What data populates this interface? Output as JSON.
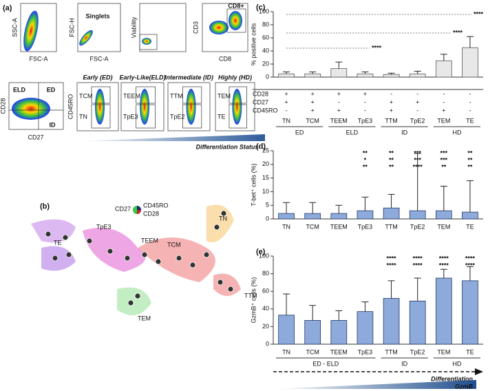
{
  "panel_a": {
    "label": "(a)",
    "plots": [
      {
        "x": "FSC-A",
        "y": "SSC-A"
      },
      {
        "x": "FSC-A",
        "y": "FSC-H",
        "gate": "Singlets"
      },
      {
        "y": "Viability"
      },
      {
        "x": "CD8",
        "y": "CD3",
        "gate": "CD8+"
      },
      {
        "x": "CD27",
        "y": "CD28",
        "gates": [
          "ELD",
          "ED",
          "ID"
        ]
      }
    ],
    "subset_y": "CD45RO",
    "subsets": [
      {
        "title": "Early (ED)",
        "upper": "TCM",
        "lower": "TN"
      },
      {
        "title": "Early-Like(ELD)",
        "upper": "TEEM",
        "lower": "TpE3"
      },
      {
        "title": "Intermediate (ID)",
        "upper": "TTM",
        "lower": "TpE2"
      },
      {
        "title": "Highly (HD)",
        "upper": "TEM",
        "lower": "TE"
      }
    ],
    "arrow": "Differentiation Status"
  },
  "panel_b": {
    "label": "(b)",
    "legend": [
      "CD27",
      "CD45RO",
      "CD28"
    ],
    "clusters": [
      "TE",
      "TpE3",
      "TEEM",
      "TCM",
      "TN",
      "TTM",
      "TEM"
    ]
  },
  "chart_data": [
    {
      "type": "bar",
      "label": "(c)",
      "ylabel": "% positive cells",
      "categories": [
        "TN",
        "TCM",
        "TEEM",
        "TpE3",
        "TTM",
        "TpE2",
        "TEM",
        "TE"
      ],
      "values": [
        5,
        5,
        13,
        5,
        4,
        5,
        25,
        45
      ],
      "errors": [
        3,
        3,
        10,
        3,
        2,
        4,
        10,
        17
      ],
      "ylim": [
        0,
        100
      ],
      "yticks": [
        0,
        20,
        40,
        60,
        80,
        100
      ],
      "color": "#e8e8e8",
      "edge": "#555555",
      "annotations": [
        "****",
        "****",
        "****"
      ],
      "markers": [
        {
          "name": "CD28",
          "signs": [
            "+",
            "+",
            "+",
            "+",
            "-",
            "-",
            "-",
            "-"
          ]
        },
        {
          "name": "CD27",
          "signs": [
            "+",
            "+",
            "-",
            "-",
            "+",
            "+",
            "-",
            "-"
          ]
        },
        {
          "name": "CD45RO",
          "signs": [
            "-",
            "+",
            "+",
            "-",
            "+",
            "-",
            "+",
            "-"
          ]
        }
      ],
      "groups": [
        "ED",
        "ELD",
        "ID",
        "HD"
      ]
    },
    {
      "type": "bar",
      "label": "(d)",
      "ylabel": "T-bet⁺ cells (%)",
      "categories": [
        "TN",
        "TCM",
        "TEEM",
        "TpE3",
        "TTM",
        "TpE2",
        "TEM",
        "TE"
      ],
      "values": [
        2,
        2,
        2,
        3,
        4,
        3,
        3,
        2.5
      ],
      "errors": [
        4,
        4,
        3,
        5,
        5,
        21,
        9,
        11.5
      ],
      "ylim": [
        0,
        25
      ],
      "yticks": [
        0,
        5,
        10,
        15,
        20,
        25
      ],
      "color": "#8eaadb",
      "edge": "#1f3864",
      "annotations": [
        [],
        [],
        [],
        [
          "**",
          "*",
          "**"
        ],
        [
          "**",
          "**",
          "**"
        ],
        [
          "***",
          "***",
          "****"
        ],
        [
          "***",
          "***",
          "**"
        ],
        [
          "**",
          "**",
          "**"
        ]
      ]
    },
    {
      "type": "bar",
      "label": "(e)",
      "ylabel": "GzmB⁺ cells (%)",
      "categories": [
        "TN",
        "TCM",
        "TEEM",
        "TpE3",
        "TTM",
        "TpE2",
        "TEM",
        "TE"
      ],
      "values": [
        33,
        27,
        27,
        37,
        52,
        49,
        75,
        72
      ],
      "errors": [
        24,
        17,
        11,
        11,
        20,
        26,
        10,
        16
      ],
      "ylim": [
        0,
        100
      ],
      "yticks": [
        0,
        20,
        40,
        60,
        80,
        100
      ],
      "color": "#8eaadb",
      "edge": "#1f3864",
      "annotations": [
        [],
        [],
        [],
        [],
        [
          "****",
          "****"
        ],
        [
          "****",
          "****"
        ],
        [
          "****",
          "****"
        ],
        [
          "****",
          "****"
        ]
      ],
      "groups": [
        "ED  -  ELD",
        "ID",
        "HD"
      ],
      "arrow": "Differentiation",
      "gradient": "GzmB"
    }
  ]
}
